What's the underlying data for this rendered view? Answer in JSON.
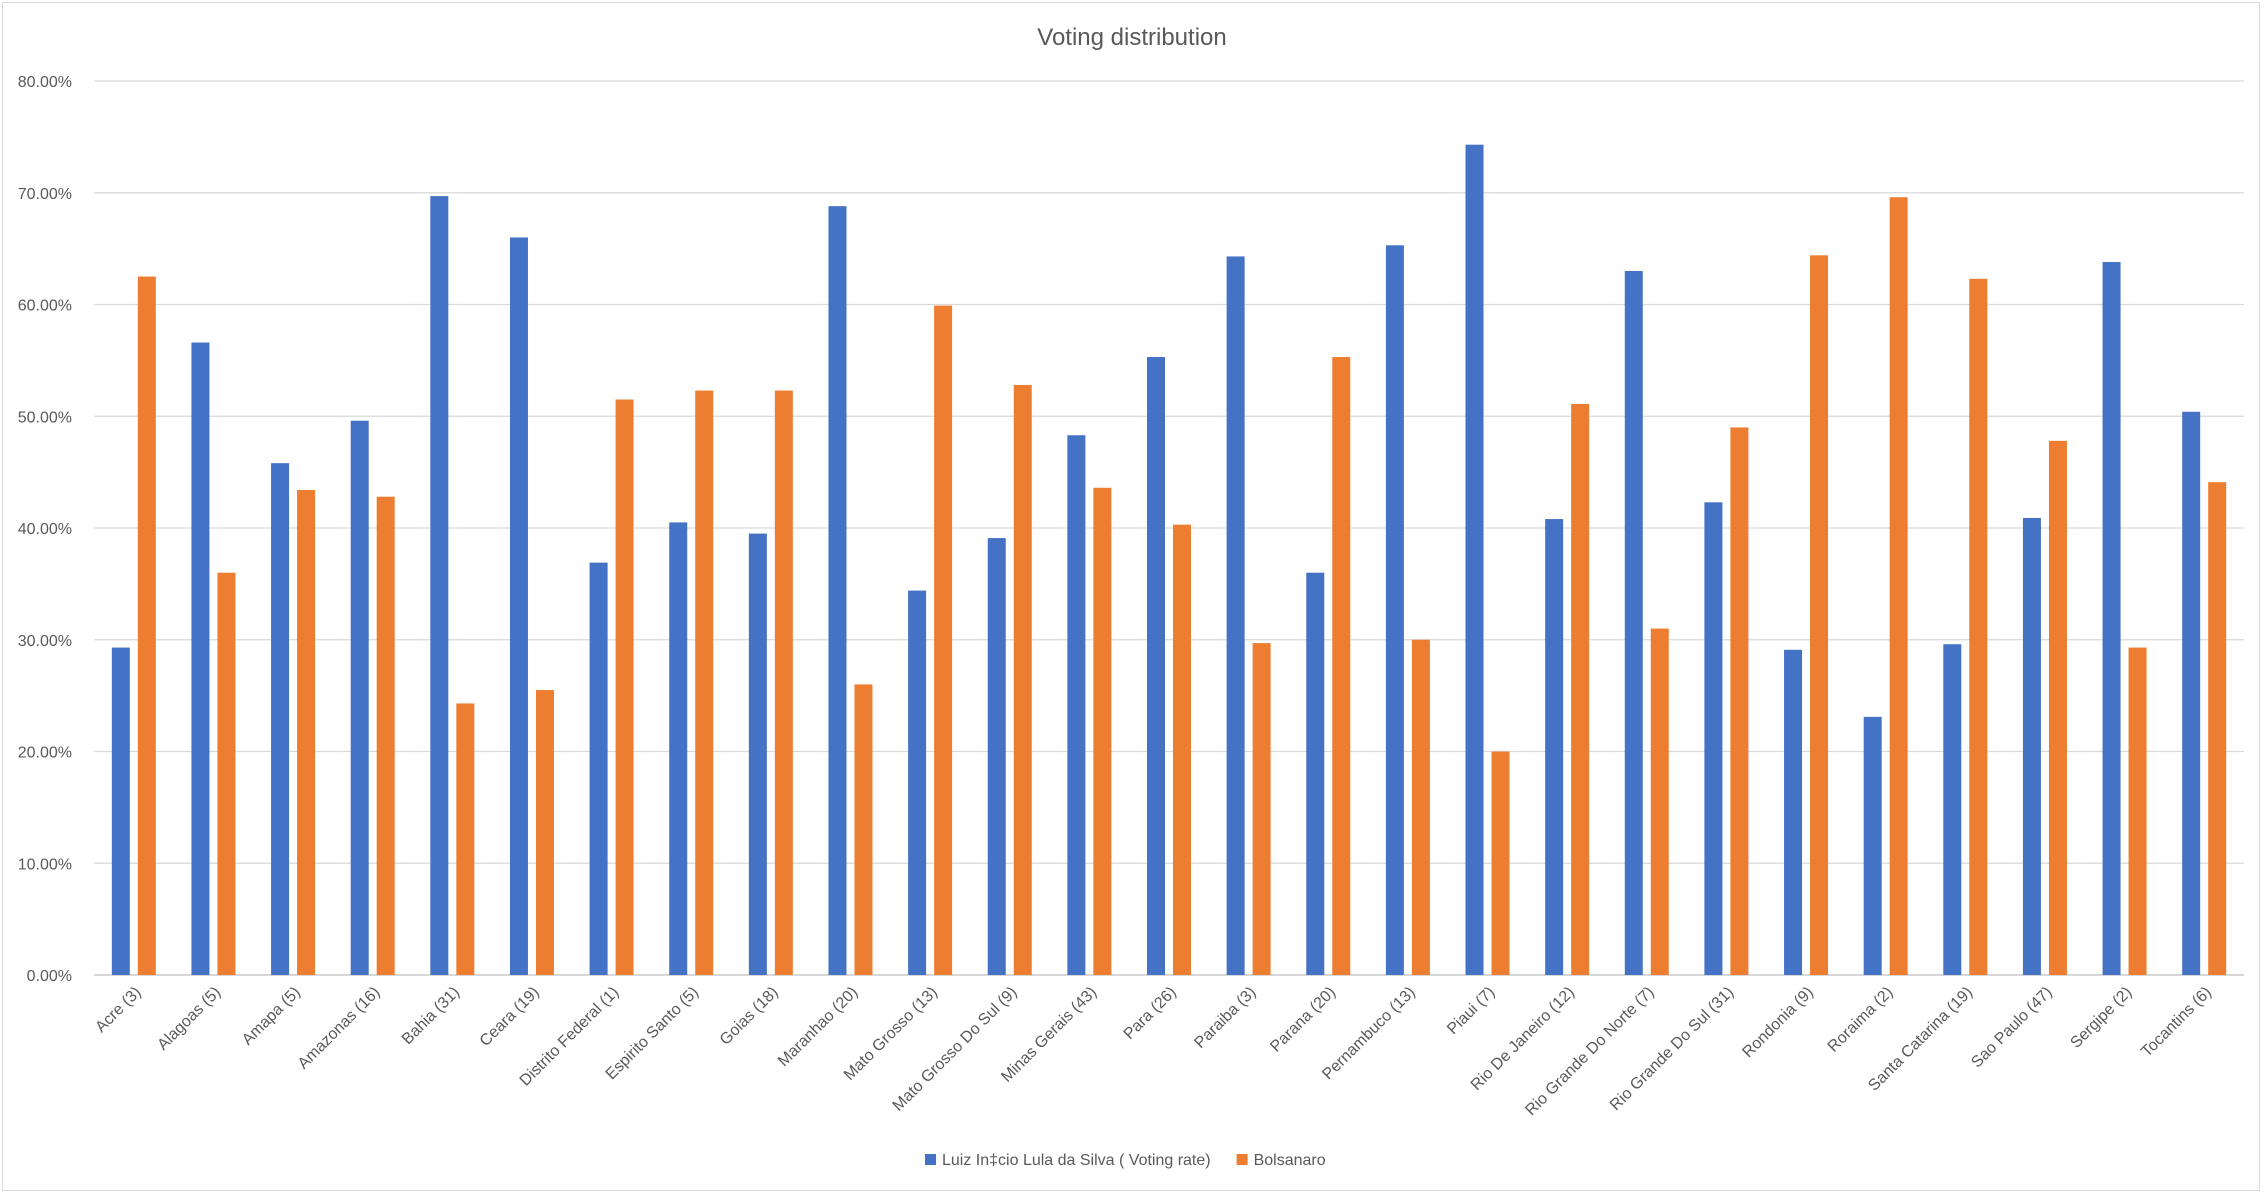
{
  "chart_data": {
    "type": "bar",
    "title": "Voting distribution",
    "xlabel": "",
    "ylabel": "",
    "ylim": [
      0,
      0.8
    ],
    "yticks": [
      "0.00%",
      "10.00%",
      "20.00%",
      "30.00%",
      "40.00%",
      "50.00%",
      "60.00%",
      "70.00%",
      "80.00%"
    ],
    "grid": true,
    "legend_position": "bottom",
    "categories": [
      "Acre (3)",
      "Alagoas (5)",
      "Amapa (5)",
      "Amazonas (16)",
      "Bahia (31)",
      "Ceara (19)",
      "Distrito Federal (1)",
      "Espirito Santo (5)",
      "Goias (18)",
      "Maranhao (20)",
      "Mato Grosso (13)",
      "Mato Grosso Do Sul (9)",
      "Minas Gerais (43)",
      "Para (26)",
      "Paraiba (3)",
      "Parana (20)",
      "Pernambuco (13)",
      "Piaui (7)",
      "Rio De Janeiro (12)",
      "Rio Grande Do Norte (7)",
      "Rio Grande Do Sul (31)",
      "Rondonia (9)",
      "Roraima (2)",
      "Santa Catarina (19)",
      "Sao Paulo (47)",
      "Sergipe (2)",
      "Tocantins (6)"
    ],
    "series": [
      {
        "name": "Luiz In‡cio Lula da Silva ( Voting rate)",
        "color": "#4472c4",
        "values": [
          0.293,
          0.566,
          0.458,
          0.496,
          0.697,
          0.66,
          0.369,
          0.405,
          0.395,
          0.688,
          0.344,
          0.391,
          0.483,
          0.553,
          0.643,
          0.36,
          0.653,
          0.743,
          0.408,
          0.63,
          0.423,
          0.291,
          0.231,
          0.296,
          0.409,
          0.638,
          0.504
        ]
      },
      {
        "name": "Bolsanaro",
        "color": "#ed7d31",
        "values": [
          0.625,
          0.36,
          0.434,
          0.428,
          0.243,
          0.255,
          0.515,
          0.523,
          0.523,
          0.26,
          0.599,
          0.528,
          0.436,
          0.403,
          0.297,
          0.553,
          0.3,
          0.2,
          0.511,
          0.31,
          0.49,
          0.644,
          0.696,
          0.623,
          0.478,
          0.293,
          0.441
        ]
      }
    ]
  }
}
